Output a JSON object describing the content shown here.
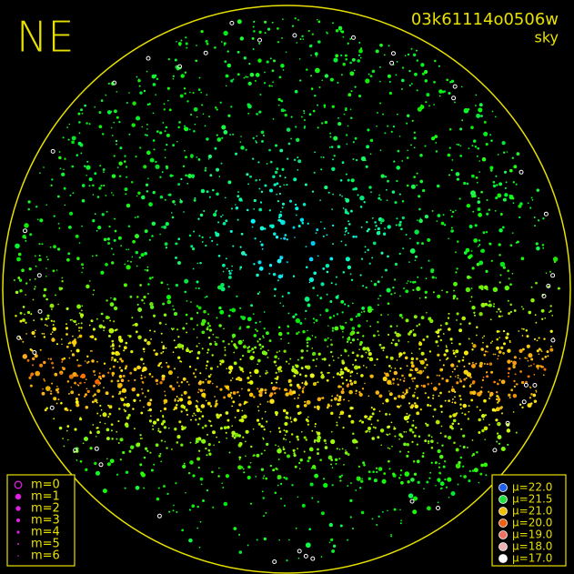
{
  "header": {
    "direction": "NE",
    "frame_id": "03k61114o0506w",
    "mode": "sky"
  },
  "magnitude_legend": {
    "color": "#e020e0",
    "entries": [
      "m=0",
      "m=1",
      "m=2",
      "m=3",
      "m=4",
      "m=5",
      "m=6"
    ]
  },
  "sky_brightness_legend": {
    "entries": [
      {
        "label": "μ=22.0",
        "color": "#2060f0"
      },
      {
        "label": "μ=21.5",
        "color": "#20e040"
      },
      {
        "label": "μ=21.0",
        "color": "#f0c000"
      },
      {
        "label": "μ=20.0",
        "color": "#f06010"
      },
      {
        "label": "μ=19.0",
        "color": "#f07060"
      },
      {
        "label": "μ=18.0",
        "color": "#f0b0b0"
      },
      {
        "label": "μ=17.0",
        "color": "#ffffff"
      }
    ]
  }
}
